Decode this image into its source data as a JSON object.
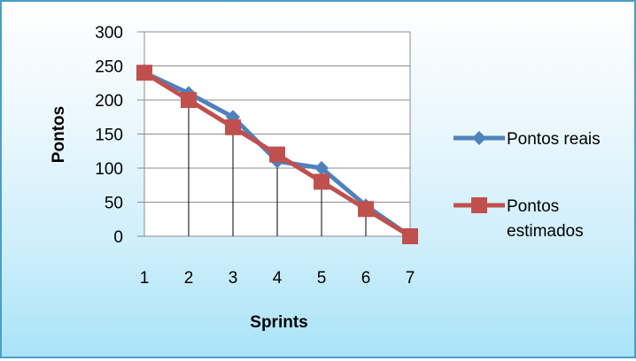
{
  "chart_data": {
    "type": "line",
    "title": "",
    "xlabel": "Sprints",
    "ylabel": "Pontos",
    "x": [
      1,
      2,
      3,
      4,
      5,
      6,
      7
    ],
    "ylim": [
      0,
      300
    ],
    "yticks": [
      0,
      50,
      100,
      150,
      200,
      250,
      300
    ],
    "grid": "horizontal",
    "legend_position": "right",
    "drop_lines": true,
    "series": [
      {
        "name": "Pontos reais",
        "name_lines": [
          "Pontos reais"
        ],
        "marker": "diamond",
        "color": "#4f81bd",
        "values": [
          240,
          210,
          175,
          110,
          100,
          45,
          0
        ]
      },
      {
        "name": "Pontos estimados",
        "name_lines": [
          "Pontos",
          "estimados"
        ],
        "marker": "square",
        "color": "#c0504d",
        "values": [
          240,
          200,
          160,
          120,
          80,
          40,
          0
        ]
      }
    ]
  }
}
